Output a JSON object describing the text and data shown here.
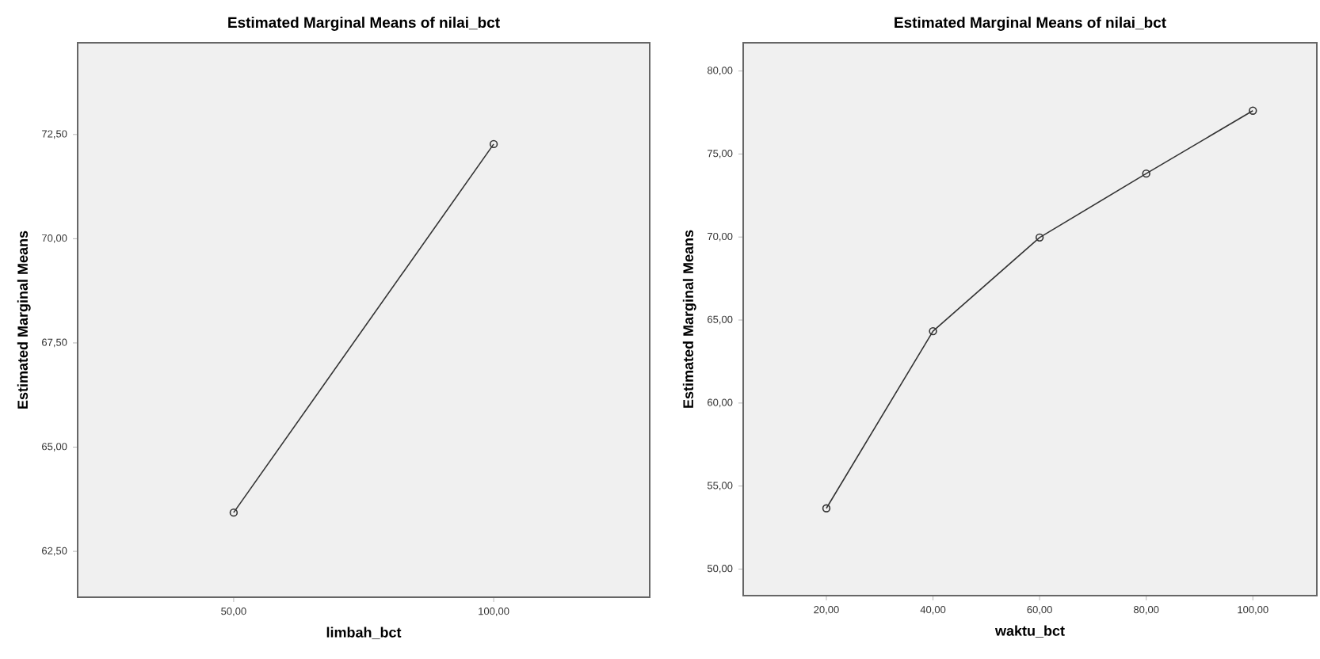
{
  "chart_data": [
    {
      "type": "line",
      "title": "Estimated Marginal Means of nilai_bct",
      "xlabel": "limbah_bct",
      "ylabel": "Estimated Marginal Means",
      "x": [
        50,
        100
      ],
      "values": [
        63.43,
        72.27
      ],
      "color": "#333333",
      "marker": "circle",
      "grid": false,
      "xlim": [
        20,
        130
      ],
      "ylim": [
        61.4,
        74.7
      ],
      "xticks": [
        {
          "value": 50,
          "label": "50,00"
        },
        {
          "value": 100,
          "label": "100,00"
        }
      ],
      "yticks": [
        {
          "value": 62.5,
          "label": "62,50"
        },
        {
          "value": 65,
          "label": "65,00"
        },
        {
          "value": 67.5,
          "label": "67,50"
        },
        {
          "value": 70,
          "label": "70,00"
        },
        {
          "value": 72.5,
          "label": "72,50"
        }
      ]
    },
    {
      "type": "line",
      "title": "Estimated Marginal Means of nilai_bct",
      "xlabel": "waktu_bct",
      "ylabel": "Estimated Marginal Means",
      "x": [
        20,
        40,
        60,
        80,
        100
      ],
      "values": [
        53.66,
        64.33,
        69.97,
        73.82,
        77.61
      ],
      "color": "#333333",
      "marker": "circle",
      "grid": false,
      "xlim": [
        4.4,
        112
      ],
      "ylim": [
        48.4,
        81.7
      ],
      "xticks": [
        {
          "value": 20,
          "label": "20,00"
        },
        {
          "value": 40,
          "label": "40,00"
        },
        {
          "value": 60,
          "label": "60,00"
        },
        {
          "value": 80,
          "label": "80,00"
        },
        {
          "value": 100,
          "label": "100,00"
        }
      ],
      "yticks": [
        {
          "value": 50,
          "label": "50,00"
        },
        {
          "value": 55,
          "label": "55,00"
        },
        {
          "value": 60,
          "label": "60,00"
        },
        {
          "value": 65,
          "label": "65,00"
        },
        {
          "value": 70,
          "label": "70,00"
        },
        {
          "value": 75,
          "label": "75,00"
        },
        {
          "value": 80,
          "label": "80,00"
        }
      ]
    }
  ]
}
